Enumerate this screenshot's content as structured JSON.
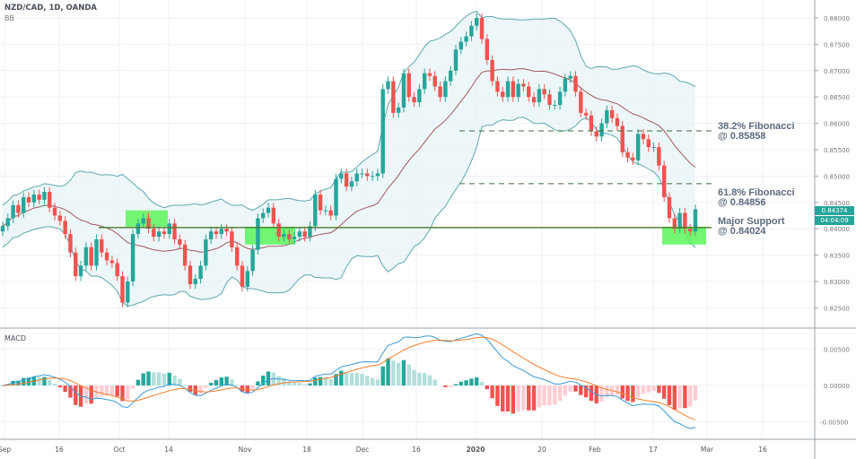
{
  "header": {
    "title": "NZD/CAD, 1D, OANDA",
    "indicator": "BB",
    "macd_label": "MACD"
  },
  "annotations": {
    "fib382_line1": "38.2% Fibonacci",
    "fib382_line2": "@ 0.85858",
    "fib618_line1": "61.8% Fibonacci",
    "fib618_line2": "@ 0.84856",
    "support_line1": "Major Support",
    "support_line2": "@ 0.84024"
  },
  "price_tag": {
    "price": "0.84374",
    "countdown": "04:04:09"
  },
  "colors": {
    "up": "#26a69a",
    "down": "#ef5350",
    "band": "#5fa8b0",
    "basis": "#a05a5a",
    "macd": "#3a9ad9",
    "signal": "#f57c2b",
    "highlight": "#5af55a",
    "support": "#4a7a2a"
  },
  "chart_data": {
    "type": "candlestick",
    "symbol": "NZD/CAD",
    "interval": "1D",
    "y_ticks": [
      "0.88000",
      "0.87500",
      "0.87000",
      "0.86500",
      "0.86000",
      "0.85500",
      "0.85000",
      "0.84500",
      "0.84000",
      "0.83500",
      "0.83000",
      "0.82500"
    ],
    "y_tick_values": [
      0.88,
      0.875,
      0.87,
      0.865,
      0.86,
      0.855,
      0.85,
      0.845,
      0.84,
      0.835,
      0.83,
      0.825
    ],
    "x_ticks": [
      "Sep",
      "16",
      "Oct",
      "14",
      "Nov",
      "18",
      "Dec",
      "16",
      "2020",
      "20",
      "Feb",
      "17",
      "Mar",
      "16"
    ],
    "macd_ticks": [
      "0.00500",
      "0.00000",
      "-0.00500"
    ],
    "macd_tick_values": [
      0.005,
      0,
      -0.005
    ],
    "levels": {
      "fib382": 0.85858,
      "fib618": 0.84856,
      "support": 0.84024
    },
    "highlight_zones": [
      [
        0.8404,
        0.8435
      ],
      [
        0.837,
        0.8404
      ],
      [
        0.837,
        0.8404
      ]
    ],
    "closes": [
      0.8405,
      0.842,
      0.8445,
      0.843,
      0.846,
      0.845,
      0.8465,
      0.8455,
      0.847,
      0.844,
      0.8425,
      0.8415,
      0.839,
      0.8355,
      0.831,
      0.833,
      0.8365,
      0.833,
      0.838,
      0.8355,
      0.834,
      0.8335,
      0.831,
      0.826,
      0.83,
      0.839,
      0.841,
      0.842,
      0.84,
      0.8385,
      0.8395,
      0.839,
      0.841,
      0.838,
      0.837,
      0.833,
      0.8295,
      0.8305,
      0.833,
      0.838,
      0.8395,
      0.839,
      0.84,
      0.8395,
      0.8365,
      0.833,
      0.829,
      0.832,
      0.836,
      0.842,
      0.843,
      0.844,
      0.841,
      0.8385,
      0.839,
      0.838,
      0.8385,
      0.8395,
      0.8385,
      0.8405,
      0.8465,
      0.8435,
      0.8435,
      0.8425,
      0.8495,
      0.8505,
      0.848,
      0.849,
      0.8505,
      0.8505,
      0.85,
      0.85,
      0.8505,
      0.8665,
      0.868,
      0.862,
      0.863,
      0.8695,
      0.865,
      0.864,
      0.8665,
      0.8695,
      0.869,
      0.867,
      0.865,
      0.868,
      0.87,
      0.874,
      0.8755,
      0.8765,
      0.8785,
      0.88,
      0.876,
      0.872,
      0.868,
      0.866,
      0.865,
      0.868,
      0.865,
      0.8675,
      0.867,
      0.865,
      0.864,
      0.8665,
      0.8655,
      0.8635,
      0.8635,
      0.866,
      0.8685,
      0.869,
      0.866,
      0.862,
      0.8615,
      0.8585,
      0.8575,
      0.86,
      0.8625,
      0.861,
      0.8595,
      0.8545,
      0.8535,
      0.853,
      0.858,
      0.857,
      0.8555,
      0.8555,
      0.852,
      0.846,
      0.842,
      0.84,
      0.843,
      0.84,
      0.8395,
      0.8437
    ]
  }
}
